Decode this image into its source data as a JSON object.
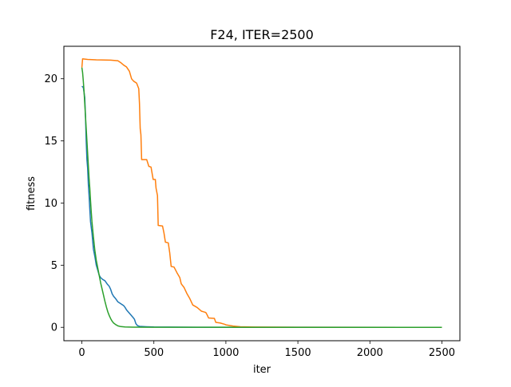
{
  "chart_data": {
    "type": "line",
    "title": "F24, ITER=2500",
    "xlabel": "iter",
    "ylabel": "fitness",
    "xlim": [
      -125,
      2625
    ],
    "ylim": [
      -1.0768,
      22.6128
    ],
    "xticks": [
      0,
      500,
      1000,
      1500,
      2000,
      2500
    ],
    "yticks": [
      0,
      5,
      10,
      15,
      20
    ],
    "grid": false,
    "legend": "none",
    "series": [
      {
        "color": "#1f77b4",
        "points": [
          [
            0,
            19.4
          ],
          [
            10,
            19.3
          ],
          [
            20,
            18.5
          ],
          [
            25,
            17.0
          ],
          [
            30,
            15.0
          ],
          [
            35,
            13.5
          ],
          [
            40,
            12.8
          ],
          [
            45,
            11.5
          ],
          [
            50,
            10.6
          ],
          [
            55,
            9.5
          ],
          [
            60,
            8.5
          ],
          [
            70,
            7.6
          ],
          [
            80,
            6.3
          ],
          [
            90,
            5.7
          ],
          [
            100,
            5.0
          ],
          [
            110,
            4.6
          ],
          [
            120,
            4.2
          ],
          [
            130,
            4.0
          ],
          [
            145,
            3.85
          ],
          [
            160,
            3.75
          ],
          [
            175,
            3.5
          ],
          [
            190,
            3.3
          ],
          [
            200,
            3.05
          ],
          [
            210,
            2.7
          ],
          [
            220,
            2.5
          ],
          [
            235,
            2.3
          ],
          [
            250,
            2.05
          ],
          [
            270,
            1.9
          ],
          [
            290,
            1.75
          ],
          [
            300,
            1.6
          ],
          [
            310,
            1.4
          ],
          [
            325,
            1.2
          ],
          [
            340,
            1.0
          ],
          [
            355,
            0.8
          ],
          [
            365,
            0.65
          ],
          [
            375,
            0.3
          ],
          [
            385,
            0.15
          ],
          [
            400,
            0.08
          ],
          [
            450,
            0.05
          ],
          [
            500,
            0.03
          ],
          [
            600,
            0.02
          ],
          [
            800,
            0.01
          ],
          [
            1000,
            0.005
          ],
          [
            2500,
            0.0
          ]
        ]
      },
      {
        "color": "#ff7f0e",
        "points": [
          [
            0,
            20.9
          ],
          [
            5,
            21.6
          ],
          [
            40,
            21.55
          ],
          [
            100,
            21.52
          ],
          [
            200,
            21.5
          ],
          [
            250,
            21.45
          ],
          [
            270,
            21.3
          ],
          [
            290,
            21.1
          ],
          [
            310,
            20.95
          ],
          [
            330,
            20.6
          ],
          [
            345,
            20.0
          ],
          [
            360,
            19.8
          ],
          [
            380,
            19.65
          ],
          [
            395,
            19.2
          ],
          [
            400,
            18.0
          ],
          [
            405,
            16.0
          ],
          [
            410,
            15.5
          ],
          [
            415,
            13.5
          ],
          [
            450,
            13.5
          ],
          [
            465,
            12.95
          ],
          [
            480,
            12.9
          ],
          [
            495,
            11.9
          ],
          [
            510,
            11.9
          ],
          [
            515,
            11.2
          ],
          [
            525,
            10.6
          ],
          [
            530,
            8.2
          ],
          [
            560,
            8.15
          ],
          [
            570,
            7.6
          ],
          [
            580,
            6.85
          ],
          [
            600,
            6.8
          ],
          [
            610,
            6.0
          ],
          [
            620,
            4.9
          ],
          [
            640,
            4.85
          ],
          [
            660,
            4.4
          ],
          [
            680,
            4.0
          ],
          [
            690,
            3.5
          ],
          [
            710,
            3.2
          ],
          [
            730,
            2.7
          ],
          [
            750,
            2.3
          ],
          [
            770,
            1.8
          ],
          [
            800,
            1.6
          ],
          [
            830,
            1.3
          ],
          [
            860,
            1.2
          ],
          [
            870,
            1.0
          ],
          [
            880,
            0.75
          ],
          [
            920,
            0.72
          ],
          [
            930,
            0.4
          ],
          [
            960,
            0.35
          ],
          [
            990,
            0.25
          ],
          [
            1000,
            0.2
          ],
          [
            1050,
            0.1
          ],
          [
            1100,
            0.05
          ],
          [
            1200,
            0.02
          ],
          [
            1500,
            0.005
          ],
          [
            2500,
            0.0
          ]
        ]
      },
      {
        "color": "#2ca02c",
        "points": [
          [
            0,
            20.9
          ],
          [
            5,
            20.5
          ],
          [
            10,
            19.8
          ],
          [
            15,
            19.0
          ],
          [
            20,
            18.0
          ],
          [
            25,
            17.0
          ],
          [
            30,
            16.0
          ],
          [
            35,
            15.0
          ],
          [
            40,
            14.0
          ],
          [
            45,
            13.0
          ],
          [
            50,
            12.0
          ],
          [
            55,
            11.2
          ],
          [
            60,
            10.2
          ],
          [
            65,
            9.3
          ],
          [
            70,
            8.5
          ],
          [
            80,
            7.3
          ],
          [
            90,
            6.2
          ],
          [
            100,
            5.4
          ],
          [
            110,
            4.8
          ],
          [
            120,
            4.2
          ],
          [
            130,
            3.6
          ],
          [
            140,
            3.1
          ],
          [
            150,
            2.6
          ],
          [
            160,
            2.1
          ],
          [
            170,
            1.65
          ],
          [
            180,
            1.25
          ],
          [
            190,
            0.95
          ],
          [
            200,
            0.7
          ],
          [
            210,
            0.5
          ],
          [
            220,
            0.35
          ],
          [
            235,
            0.22
          ],
          [
            250,
            0.12
          ],
          [
            270,
            0.06
          ],
          [
            300,
            0.03
          ],
          [
            350,
            0.015
          ],
          [
            500,
            0.005
          ],
          [
            2500,
            0.0
          ]
        ]
      }
    ]
  }
}
